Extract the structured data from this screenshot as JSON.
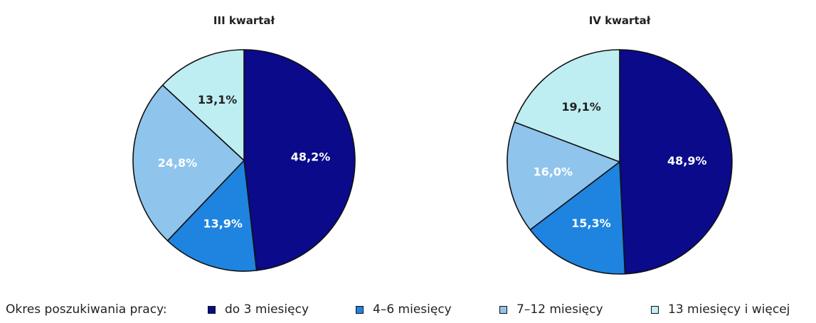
{
  "chart_data": [
    {
      "type": "pie",
      "title": "III kwartał",
      "categories": [
        "do 3 miesięcy",
        "4–6 miesięcy",
        "7–12 miesięcy",
        "13 miesięcy i więcej"
      ],
      "values": [
        48.2,
        13.9,
        24.8,
        13.1
      ],
      "labels": [
        "48,2%",
        "13,9%",
        "24,8%",
        "13,1%"
      ]
    },
    {
      "type": "pie",
      "title": "IV kwartał",
      "categories": [
        "do 3 miesięcy",
        "4–6 miesięcy",
        "7–12 miesięcy",
        "13 miesięcy i więcej"
      ],
      "values": [
        48.9,
        15.3,
        16.0,
        19.1
      ],
      "labels": [
        "48,9%",
        "15,3%",
        "16,0%",
        "19,1%"
      ]
    }
  ],
  "colors": [
    "#0a0a8a",
    "#1e84e0",
    "#8fc4ec",
    "#bfeef2"
  ],
  "label_colors": [
    "#ffffff",
    "#ffffff",
    "#ffffff",
    "#222222"
  ],
  "legend": {
    "title": "Okres poszukiwania pracy:",
    "items": [
      {
        "label": "do 3 miesięcy"
      },
      {
        "label": "4–6 miesięcy"
      },
      {
        "label": "7–12 miesięcy"
      },
      {
        "label": "13 miesięcy i więcej"
      }
    ]
  }
}
